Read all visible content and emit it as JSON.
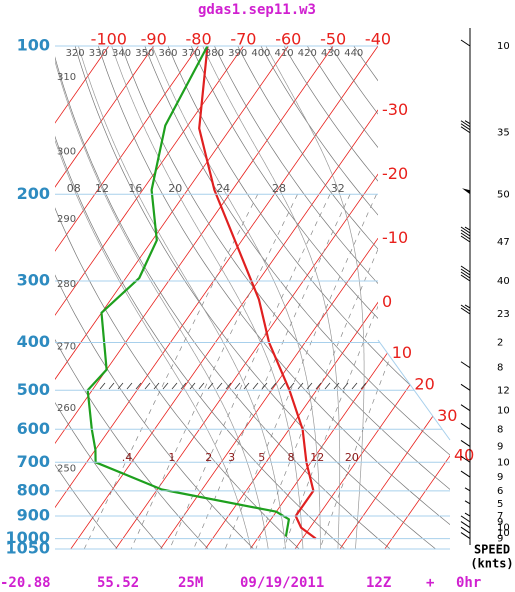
{
  "chart_data": {
    "type": "skewt",
    "title": "gdas1.sep11.w3",
    "ylim": [
      100,
      1050
    ],
    "log_scale": true,
    "yticks": [
      100,
      200,
      300,
      400,
      500,
      600,
      700,
      800,
      900,
      1000,
      1050
    ],
    "xlim": [
      -112,
      -40
    ],
    "xticks": [
      -100,
      -90,
      -80,
      -70,
      -60,
      -50,
      -40,
      -30,
      -20,
      -10,
      0,
      10,
      20,
      30,
      40
    ],
    "isotherm_color": "#e8201c",
    "dry_adiabats": [
      250,
      260,
      270,
      280,
      290,
      300,
      310,
      320,
      330,
      340,
      350,
      360,
      370,
      380,
      390,
      400,
      410,
      420,
      430,
      440
    ],
    "moist_adiabats": [
      {
        "value": 8,
        "label": "08"
      },
      12,
      16,
      20,
      24,
      28,
      32
    ],
    "mixing_ratios": [
      {
        "value": 0.4,
        "label": ".4"
      },
      1,
      2,
      3,
      5,
      8,
      12,
      20
    ],
    "series": [
      {
        "color": "#e02020",
        "pressure": [
          100,
          147,
          196,
          327,
          400,
          500,
          600,
          700,
          800,
          850,
          900,
          950,
          1000
        ],
        "values": [
          -78,
          -67,
          -54,
          -27,
          -18,
          -6,
          3,
          9,
          15,
          15,
          15,
          18,
          23
        ]
      },
      {
        "color": "#1ea01e",
        "pressure": [
          100,
          145,
          196,
          248,
          296,
          348,
          454,
          500,
          600,
          660,
          700,
          795,
          882,
          914,
          990
        ],
        "values": [
          -78,
          -75,
          -68,
          -59,
          -57,
          -60,
          -50,
          -51,
          -44,
          -40,
          -38,
          -19,
          10,
          14,
          16
        ]
      }
    ],
    "wind": {
      "pressure": [
        100,
        150,
        200,
        250,
        300,
        350,
        400,
        450,
        500,
        550,
        600,
        650,
        700,
        750,
        800,
        850,
        900,
        925,
        950,
        975,
        1000
      ],
      "speed": [
        10,
        35,
        50,
        47,
        40,
        23,
        2,
        8,
        12,
        10,
        8,
        9,
        10,
        9,
        6,
        5,
        7,
        9,
        10,
        10,
        9
      ]
    },
    "wind_label": "SPEED",
    "wind_unit": "(knts)",
    "footer": {
      "lat": -20.88,
      "lon": 55.52,
      "elevation": "25M",
      "date": "09/19/2011",
      "hour": "12Z",
      "plus": "+",
      "forecast": "0hr"
    }
  }
}
